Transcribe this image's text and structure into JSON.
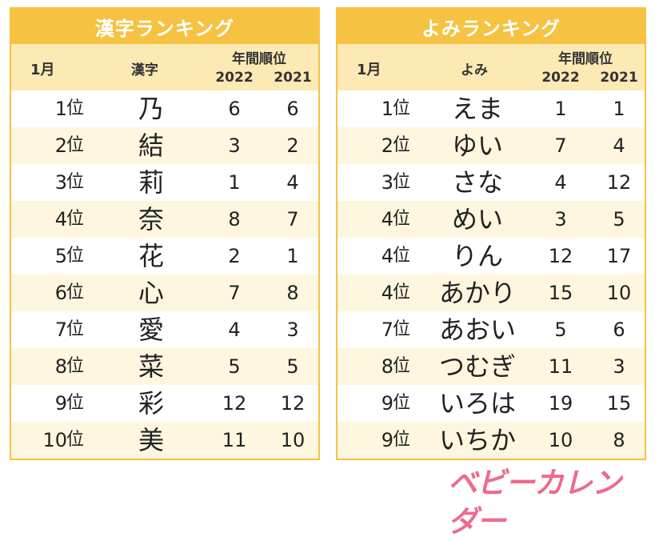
{
  "kanji_panel": {
    "title": "漢字ランキング",
    "header": {
      "month": "1月",
      "item": "漢字",
      "annual": "年間順位",
      "year1": "2022",
      "year2": "2021"
    },
    "rows": [
      {
        "rank": "1",
        "unit": "位",
        "item": "乃",
        "y2022": "6",
        "y2021": "6"
      },
      {
        "rank": "2",
        "unit": "位",
        "item": "結",
        "y2022": "3",
        "y2021": "2"
      },
      {
        "rank": "3",
        "unit": "位",
        "item": "莉",
        "y2022": "1",
        "y2021": "4"
      },
      {
        "rank": "4",
        "unit": "位",
        "item": "奈",
        "y2022": "8",
        "y2021": "7"
      },
      {
        "rank": "5",
        "unit": "位",
        "item": "花",
        "y2022": "2",
        "y2021": "1"
      },
      {
        "rank": "6",
        "unit": "位",
        "item": "心",
        "y2022": "7",
        "y2021": "8"
      },
      {
        "rank": "7",
        "unit": "位",
        "item": "愛",
        "y2022": "4",
        "y2021": "3"
      },
      {
        "rank": "8",
        "unit": "位",
        "item": "菜",
        "y2022": "5",
        "y2021": "5"
      },
      {
        "rank": "9",
        "unit": "位",
        "item": "彩",
        "y2022": "12",
        "y2021": "12"
      },
      {
        "rank": "10",
        "unit": "位",
        "item": "美",
        "y2022": "11",
        "y2021": "10"
      }
    ]
  },
  "yomi_panel": {
    "title": "よみランキング",
    "header": {
      "month": "1月",
      "item": "よみ",
      "annual": "年間順位",
      "year1": "2022",
      "year2": "2021"
    },
    "rows": [
      {
        "rank": "1",
        "unit": "位",
        "item": "えま",
        "y2022": "1",
        "y2021": "1"
      },
      {
        "rank": "2",
        "unit": "位",
        "item": "ゆい",
        "y2022": "7",
        "y2021": "4"
      },
      {
        "rank": "3",
        "unit": "位",
        "item": "さな",
        "y2022": "4",
        "y2021": "12"
      },
      {
        "rank": "4",
        "unit": "位",
        "item": "めい",
        "y2022": "3",
        "y2021": "5"
      },
      {
        "rank": "4",
        "unit": "位",
        "item": "りん",
        "y2022": "12",
        "y2021": "17"
      },
      {
        "rank": "4",
        "unit": "位",
        "item": "あかり",
        "y2022": "15",
        "y2021": "10"
      },
      {
        "rank": "7",
        "unit": "位",
        "item": "あおい",
        "y2022": "5",
        "y2021": "6"
      },
      {
        "rank": "8",
        "unit": "位",
        "item": "つむぎ",
        "y2022": "11",
        "y2021": "3"
      },
      {
        "rank": "9",
        "unit": "位",
        "item": "いろは",
        "y2022": "19",
        "y2021": "15"
      },
      {
        "rank": "9",
        "unit": "位",
        "item": "いちか",
        "y2022": "10",
        "y2021": "8"
      }
    ]
  },
  "logo": {
    "text": "ベビーカレンダー",
    "color": "#ee6a8c"
  },
  "colors": {
    "accent": "#f5c242",
    "header_bg": "#fde9b4",
    "stripe": "#fef6df"
  }
}
